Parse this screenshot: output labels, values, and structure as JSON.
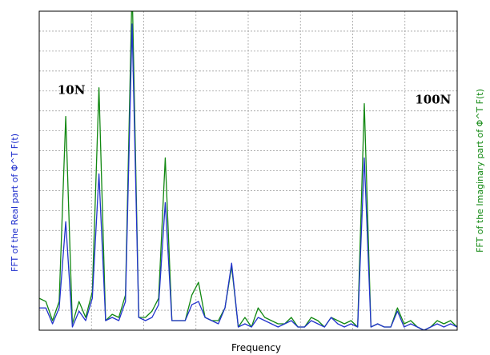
{
  "chart_data": {
    "type": "line",
    "title": "",
    "xlabel": "Frequency",
    "ylabel_left": "FFT of the Real part of Φ^T F(t)",
    "ylabel_right": "FFT of the Imaginary part of Φ^T F(t)",
    "xlim": [
      0,
      52
    ],
    "ylim": [
      0,
      100
    ],
    "grid": true,
    "series": [
      {
        "color": "#2233cc",
        "values": [
          7,
          7,
          2,
          7,
          34,
          1,
          6,
          3,
          10,
          49,
          3,
          4,
          3,
          9,
          96,
          4,
          3,
          4,
          8,
          40,
          3,
          3,
          3,
          8,
          9,
          4,
          3,
          2,
          7,
          21,
          1,
          2,
          1,
          4,
          3,
          2,
          1,
          2,
          3,
          1,
          1,
          3,
          2,
          1,
          4,
          2,
          1,
          2,
          1,
          54,
          1,
          2,
          1,
          1,
          6,
          1,
          2,
          1,
          0,
          1,
          2,
          1,
          2,
          1
        ]
      },
      {
        "color": "#118811",
        "values": [
          10,
          9,
          3,
          9,
          67,
          2,
          9,
          4,
          12,
          76,
          3,
          5,
          4,
          11,
          108,
          4,
          4,
          6,
          10,
          54,
          3,
          3,
          3,
          11,
          15,
          4,
          3,
          3,
          7,
          20,
          1,
          4,
          1,
          7,
          4,
          3,
          2,
          2,
          4,
          1,
          1,
          4,
          3,
          1,
          4,
          3,
          2,
          3,
          1,
          71,
          1,
          2,
          1,
          1,
          7,
          2,
          3,
          1,
          0,
          1,
          3,
          2,
          3,
          1
        ]
      }
    ],
    "annotations": [
      {
        "text": "10N",
        "x": 4,
        "y": 74
      },
      {
        "text": "100N",
        "x": 49,
        "y": 71
      }
    ]
  }
}
